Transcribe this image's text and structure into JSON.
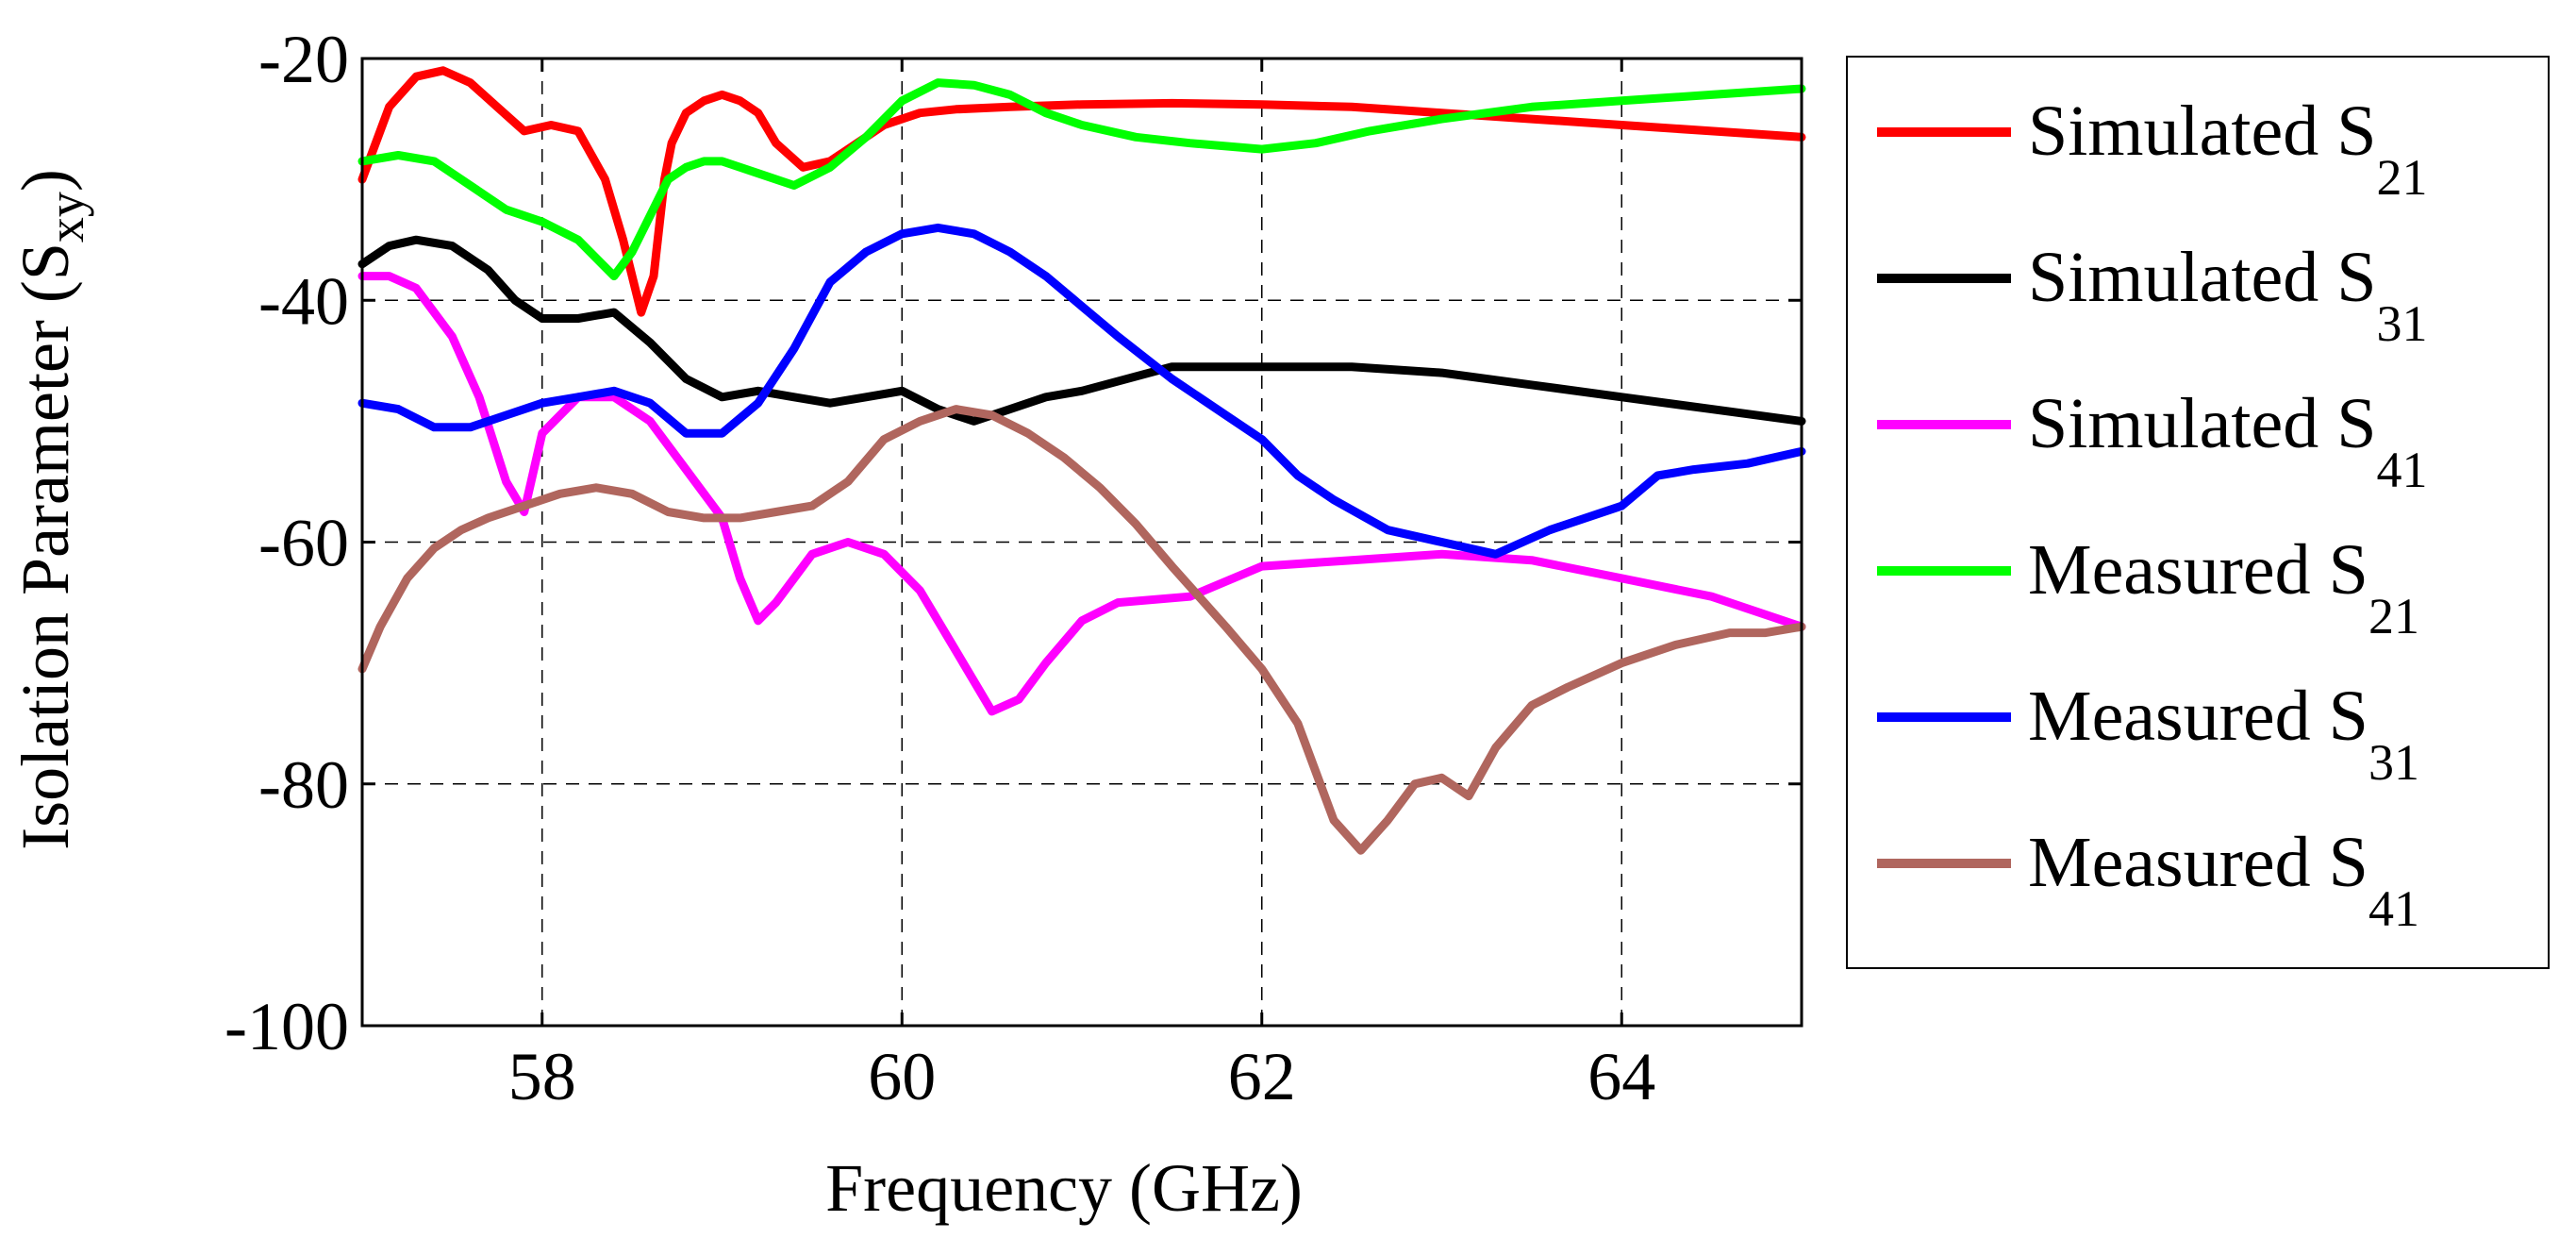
{
  "chart_data": {
    "type": "line",
    "title": "",
    "xlabel": "Frequency (GHz)",
    "ylabel": {
      "main": "Isolation Parameter (S",
      "sub": "xy",
      "suffix": ")"
    },
    "xlim": [
      57,
      65
    ],
    "ylim": [
      -100,
      -20
    ],
    "xticks": [
      58,
      60,
      62,
      64
    ],
    "yticks": [
      -20,
      -40,
      -60,
      -80,
      -100
    ],
    "xtick_labels": [
      "58",
      "60",
      "62",
      "64"
    ],
    "ytick_labels": [
      "-20",
      "-40",
      "-60",
      "-80",
      "-100"
    ],
    "grid": true,
    "legend_position": "outside-right",
    "series": [
      {
        "name": "Simulated S21",
        "label_main": "Simulated S",
        "label_sub": "21",
        "color": "#ff0000",
        "x": [
          57.0,
          57.15,
          57.3,
          57.45,
          57.6,
          57.75,
          57.9,
          58.05,
          58.2,
          58.35,
          58.45,
          58.55,
          58.62,
          58.68,
          58.72,
          58.8,
          58.9,
          59.0,
          59.1,
          59.2,
          59.3,
          59.45,
          59.6,
          59.75,
          59.9,
          60.1,
          60.3,
          60.6,
          61.0,
          61.5,
          62.0,
          62.5,
          63.0,
          63.5,
          64.0,
          64.5,
          65.0
        ],
        "y": [
          -30,
          -24,
          -21.5,
          -21,
          -22,
          -24,
          -26,
          -25.5,
          -26,
          -30,
          -35,
          -41,
          -38,
          -30,
          -27,
          -24.5,
          -23.5,
          -23,
          -23.5,
          -24.5,
          -27,
          -29,
          -28.5,
          -27,
          -25.5,
          -24.5,
          -24.2,
          -24,
          -23.8,
          -23.7,
          -23.8,
          -24,
          -24.5,
          -25,
          -25.5,
          -26,
          -26.5
        ]
      },
      {
        "name": "Simulated S31",
        "label_main": "Simulated S",
        "label_sub": "31",
        "color": "#000000",
        "x": [
          57.0,
          57.15,
          57.3,
          57.5,
          57.7,
          57.85,
          58.0,
          58.2,
          58.4,
          58.6,
          58.8,
          59.0,
          59.2,
          59.4,
          59.6,
          59.8,
          60.0,
          60.2,
          60.4,
          60.6,
          60.8,
          61.0,
          61.5,
          62.0,
          62.5,
          63.0,
          63.5,
          64.0,
          64.5,
          65.0
        ],
        "y": [
          -37,
          -35.5,
          -35,
          -35.5,
          -37.5,
          -40,
          -41.5,
          -41.5,
          -41,
          -43.5,
          -46.5,
          -48,
          -47.5,
          -48,
          -48.5,
          -48,
          -47.5,
          -49,
          -50,
          -49,
          -48,
          -47.5,
          -45.5,
          -45.5,
          -45.5,
          -46,
          -47,
          -48,
          -49,
          -50
        ]
      },
      {
        "name": "Simulated S41",
        "label_main": "Simulated S",
        "label_sub": "41",
        "color": "#ff00ff",
        "x": [
          57.0,
          57.15,
          57.3,
          57.5,
          57.65,
          57.8,
          57.9,
          58.0,
          58.2,
          58.4,
          58.6,
          58.8,
          59.0,
          59.1,
          59.2,
          59.3,
          59.5,
          59.7,
          59.9,
          60.1,
          60.3,
          60.5,
          60.65,
          60.8,
          61.0,
          61.2,
          61.6,
          62.0,
          62.5,
          63.0,
          63.5,
          64.0,
          64.5,
          65.0
        ],
        "y": [
          -38,
          -38,
          -39,
          -43,
          -48,
          -55,
          -57.5,
          -51,
          -48,
          -48,
          -50,
          -54,
          -58,
          -63,
          -66.5,
          -65,
          -61,
          -60,
          -61,
          -64,
          -69,
          -74,
          -73,
          -70,
          -66.5,
          -65,
          -64.5,
          -62,
          -61.5,
          -61,
          -61.5,
          -63,
          -64.5,
          -67
        ]
      },
      {
        "name": "Measured S21",
        "label_main": "Measured S",
        "label_sub": "21",
        "color": "#00ff00",
        "x": [
          57.0,
          57.2,
          57.4,
          57.6,
          57.8,
          58.0,
          58.2,
          58.4,
          58.5,
          58.6,
          58.7,
          58.8,
          58.9,
          59.0,
          59.2,
          59.4,
          59.6,
          59.8,
          60.0,
          60.2,
          60.4,
          60.6,
          60.8,
          61.0,
          61.3,
          61.6,
          62.0,
          62.3,
          62.6,
          63.0,
          63.5,
          64.0,
          64.5,
          65.0
        ],
        "y": [
          -28.5,
          -28,
          -28.5,
          -30.5,
          -32.5,
          -33.5,
          -35,
          -38,
          -36,
          -33,
          -30,
          -29,
          -28.5,
          -28.5,
          -29.5,
          -30.5,
          -29,
          -26.5,
          -23.5,
          -22,
          -22.2,
          -23,
          -24.5,
          -25.5,
          -26.5,
          -27,
          -27.5,
          -27,
          -26,
          -25,
          -24,
          -23.5,
          -23,
          -22.5
        ]
      },
      {
        "name": "Measured S31",
        "label_main": "Measured S",
        "label_sub": "31",
        "color": "#0000ff",
        "x": [
          57.0,
          57.2,
          57.4,
          57.6,
          57.8,
          58.0,
          58.2,
          58.4,
          58.6,
          58.8,
          59.0,
          59.2,
          59.4,
          59.6,
          59.8,
          60.0,
          60.2,
          60.4,
          60.6,
          60.8,
          61.0,
          61.2,
          61.5,
          61.8,
          62.0,
          62.2,
          62.4,
          62.7,
          63.0,
          63.3,
          63.6,
          64.0,
          64.2,
          64.4,
          64.7,
          65.0
        ],
        "y": [
          -48.5,
          -49,
          -50.5,
          -50.5,
          -49.5,
          -48.5,
          -48,
          -47.5,
          -48.5,
          -51,
          -51,
          -48.5,
          -44,
          -38.5,
          -36,
          -34.5,
          -34,
          -34.5,
          -36,
          -38,
          -40.5,
          -43,
          -46.5,
          -49.5,
          -51.5,
          -54.5,
          -56.5,
          -59,
          -60,
          -61,
          -59,
          -57,
          -54.5,
          -54,
          -53.5,
          -52.5
        ]
      },
      {
        "name": "Measured S41",
        "label_main": "Measured S",
        "label_sub": "41",
        "color": "#b0665e",
        "x": [
          57.0,
          57.1,
          57.25,
          57.4,
          57.55,
          57.7,
          57.9,
          58.1,
          58.3,
          58.5,
          58.7,
          58.9,
          59.1,
          59.3,
          59.5,
          59.7,
          59.9,
          60.1,
          60.3,
          60.5,
          60.7,
          60.9,
          61.1,
          61.3,
          61.5,
          61.8,
          62.0,
          62.2,
          62.4,
          62.55,
          62.7,
          62.85,
          63.0,
          63.15,
          63.3,
          63.5,
          63.7,
          64.0,
          64.3,
          64.6,
          64.8,
          65.0
        ],
        "y": [
          -70.5,
          -67,
          -63,
          -60.5,
          -59,
          -58,
          -57,
          -56,
          -55.5,
          -56,
          -57.5,
          -58,
          -58,
          -57.5,
          -57,
          -55,
          -51.5,
          -50,
          -49,
          -49.5,
          -51,
          -53,
          -55.5,
          -58.5,
          -62,
          -67,
          -70.5,
          -75,
          -83,
          -85.5,
          -83,
          -80,
          -79.5,
          -81,
          -77,
          -73.5,
          -72,
          -70,
          -68.5,
          -67.5,
          -67.5,
          -67
        ]
      }
    ]
  }
}
